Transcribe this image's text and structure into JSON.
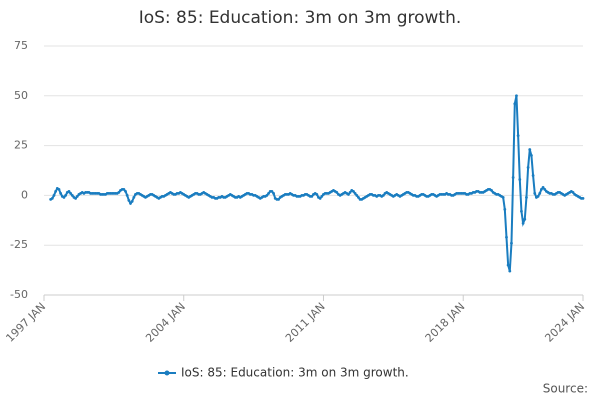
{
  "chart_data": {
    "type": "line",
    "title": "IoS: 85: Education: 3m on 3m growth.",
    "source": "Source:",
    "categories": [
      "1997 JAN",
      null,
      null,
      null,
      null,
      null,
      null,
      null,
      null,
      null,
      null,
      null,
      null,
      null,
      null,
      null,
      null,
      null,
      null,
      null,
      null,
      null,
      null,
      null,
      null,
      null,
      null,
      null,
      null,
      null,
      null,
      null,
      null,
      null,
      null,
      null,
      null,
      null,
      null,
      null,
      null,
      null,
      null,
      null,
      null,
      null,
      null,
      null,
      null,
      null,
      null,
      null,
      null,
      null,
      null,
      null,
      null,
      null,
      null,
      null,
      null,
      null,
      null,
      null,
      null,
      null,
      null,
      null,
      null,
      null,
      null,
      null,
      null,
      null,
      null,
      null,
      null,
      null,
      null,
      null,
      null,
      null,
      null,
      null,
      "2004 JAN",
      null,
      null,
      null,
      null,
      null,
      null,
      null,
      null,
      null,
      null,
      null,
      null,
      null,
      null,
      null,
      null,
      null,
      null,
      null,
      null,
      null,
      null,
      null,
      null,
      null,
      null,
      null,
      null,
      null,
      null,
      null,
      null,
      null,
      null,
      null,
      null,
      null,
      null,
      null,
      null,
      null,
      null,
      null,
      null,
      null,
      null,
      null,
      null,
      null,
      null,
      null,
      null,
      null,
      null,
      null,
      null,
      null,
      null,
      null,
      null,
      null,
      null,
      null,
      null,
      null,
      null,
      null,
      null,
      null,
      null,
      null,
      null,
      null,
      null,
      null,
      null,
      null,
      null,
      null,
      null,
      null,
      null,
      null,
      "2011 JAN",
      null,
      null,
      null,
      null,
      null,
      null,
      null,
      null,
      null,
      null,
      null,
      null,
      null,
      null,
      null,
      null,
      null,
      null,
      null,
      null,
      null,
      null,
      null,
      null,
      null,
      null,
      null,
      null,
      null,
      null,
      null,
      null,
      null,
      null,
      null,
      null,
      null,
      null,
      null,
      null,
      null,
      null,
      null,
      null,
      null,
      null,
      null,
      null,
      null,
      null,
      null,
      null,
      null,
      null,
      null,
      null,
      null,
      null,
      null,
      null,
      null,
      null,
      null,
      null,
      null,
      null,
      null,
      null,
      null,
      null,
      null,
      null,
      null,
      null,
      null,
      null,
      null,
      null,
      null,
      null,
      null,
      null,
      null,
      "2018 JAN",
      null,
      null,
      null,
      null,
      null,
      null,
      null,
      null,
      null,
      null,
      null,
      null,
      null,
      null,
      null,
      null,
      null,
      null,
      null,
      null,
      null,
      null,
      null,
      null,
      null,
      null,
      null,
      null,
      null,
      null,
      null,
      null,
      null,
      null,
      null,
      null,
      null,
      null,
      null,
      null,
      null,
      null,
      null,
      null,
      null,
      null,
      null,
      null,
      null,
      null,
      null,
      null,
      null,
      null,
      null,
      null,
      null,
      null,
      null,
      null,
      null,
      null,
      null,
      null,
      null,
      null,
      null,
      null,
      null,
      null,
      null,
      "2024 JAN"
    ],
    "series": [
      {
        "name": "IoS: 85: Education: 3m on 3m growth.",
        "color": "#1a7dc0",
        "values": [
          null,
          null,
          null,
          null,
          -2,
          -1.5,
          0,
          2,
          3.5,
          3,
          1,
          -0.5,
          -1,
          0,
          1.5,
          2,
          1,
          0,
          -1,
          -1.5,
          -0.5,
          0.5,
          1,
          1.5,
          1,
          1.5,
          1.5,
          1.5,
          1,
          1,
          1,
          1,
          1,
          1,
          0.5,
          0.5,
          0.5,
          0.5,
          1,
          1,
          1,
          1,
          1,
          1,
          1,
          1.5,
          2.5,
          3,
          3,
          2,
          0,
          -2.5,
          -4,
          -3,
          -1,
          0.5,
          1,
          1,
          0.5,
          0,
          -0.5,
          -1,
          -0.5,
          0,
          0.5,
          0.5,
          0,
          -0.5,
          -1,
          -1.5,
          -1,
          -0.5,
          -0.5,
          0,
          0.5,
          1,
          1.5,
          1,
          0.5,
          0.5,
          1,
          1,
          1.5,
          1,
          0.5,
          0,
          -0.5,
          -1,
          -0.5,
          0,
          0.5,
          1,
          1,
          0.5,
          0.5,
          1,
          1.5,
          1,
          0.5,
          0,
          -0.5,
          -1,
          -1,
          -1.5,
          -1.5,
          -1,
          -1,
          -0.5,
          -1,
          -1,
          -0.5,
          0,
          0.5,
          0,
          -0.5,
          -1,
          -1,
          -0.5,
          -1,
          -0.5,
          0,
          0.5,
          1,
          1,
          0.5,
          0.5,
          0,
          0,
          -0.5,
          -1,
          -1.5,
          -1,
          -0.5,
          -0.5,
          0,
          1,
          2,
          2,
          1,
          -1.5,
          -2,
          -2,
          -1,
          -0.5,
          0,
          0.5,
          0.5,
          0.5,
          1,
          0.5,
          0,
          0,
          -0.5,
          -0.5,
          -0.5,
          0,
          0,
          0.5,
          0.5,
          0,
          -0.5,
          -0.5,
          0.5,
          1,
          0.5,
          -1,
          -1.5,
          -0.5,
          0.5,
          1,
          1,
          1,
          1.5,
          2,
          2.5,
          2,
          1.5,
          0.5,
          0,
          0.5,
          1,
          1.5,
          1,
          0.5,
          1.5,
          2.5,
          2,
          1,
          0,
          -1,
          -2,
          -2,
          -1.5,
          -1,
          -0.5,
          0,
          0.5,
          0.5,
          0,
          0,
          -0.5,
          0,
          0,
          -0.5,
          0,
          1,
          1.5,
          1,
          0.5,
          0,
          -0.5,
          0,
          0.5,
          0,
          -0.5,
          0,
          0.5,
          1,
          1.5,
          1.5,
          1,
          0.5,
          0,
          0,
          -0.5,
          -0.5,
          0,
          0.5,
          0.5,
          0,
          -0.5,
          -0.5,
          0,
          0.5,
          0.5,
          0,
          -0.5,
          0,
          0.5,
          0.5,
          0.5,
          0.5,
          1,
          0.5,
          0.5,
          0,
          0,
          0.5,
          1,
          1,
          1,
          1,
          1,
          1,
          0.5,
          0.5,
          1,
          1,
          1.5,
          1.5,
          2,
          2,
          1.5,
          1.5,
          1.5,
          2,
          2.5,
          3,
          3,
          2.5,
          1.5,
          1,
          0.5,
          0.5,
          0,
          -0.5,
          -1,
          -7,
          -21,
          -35,
          -38,
          -24,
          9,
          46,
          50,
          30,
          8,
          -8,
          -14,
          -12,
          -1,
          14,
          23,
          20,
          10,
          1,
          -1,
          -0.5,
          1,
          3,
          4,
          3,
          2,
          1.5,
          1,
          1,
          0.5,
          0.5,
          1,
          1.5,
          1.5,
          1,
          0.5,
          0,
          0.5,
          1,
          1.5,
          2,
          1.5,
          0.5,
          0,
          -0.5,
          -1,
          -1.5,
          -1.5
        ]
      }
    ],
    "ylim": [
      -50,
      75
    ],
    "yticks": [
      -50,
      -25,
      0,
      25,
      50,
      75
    ],
    "grid": true
  }
}
